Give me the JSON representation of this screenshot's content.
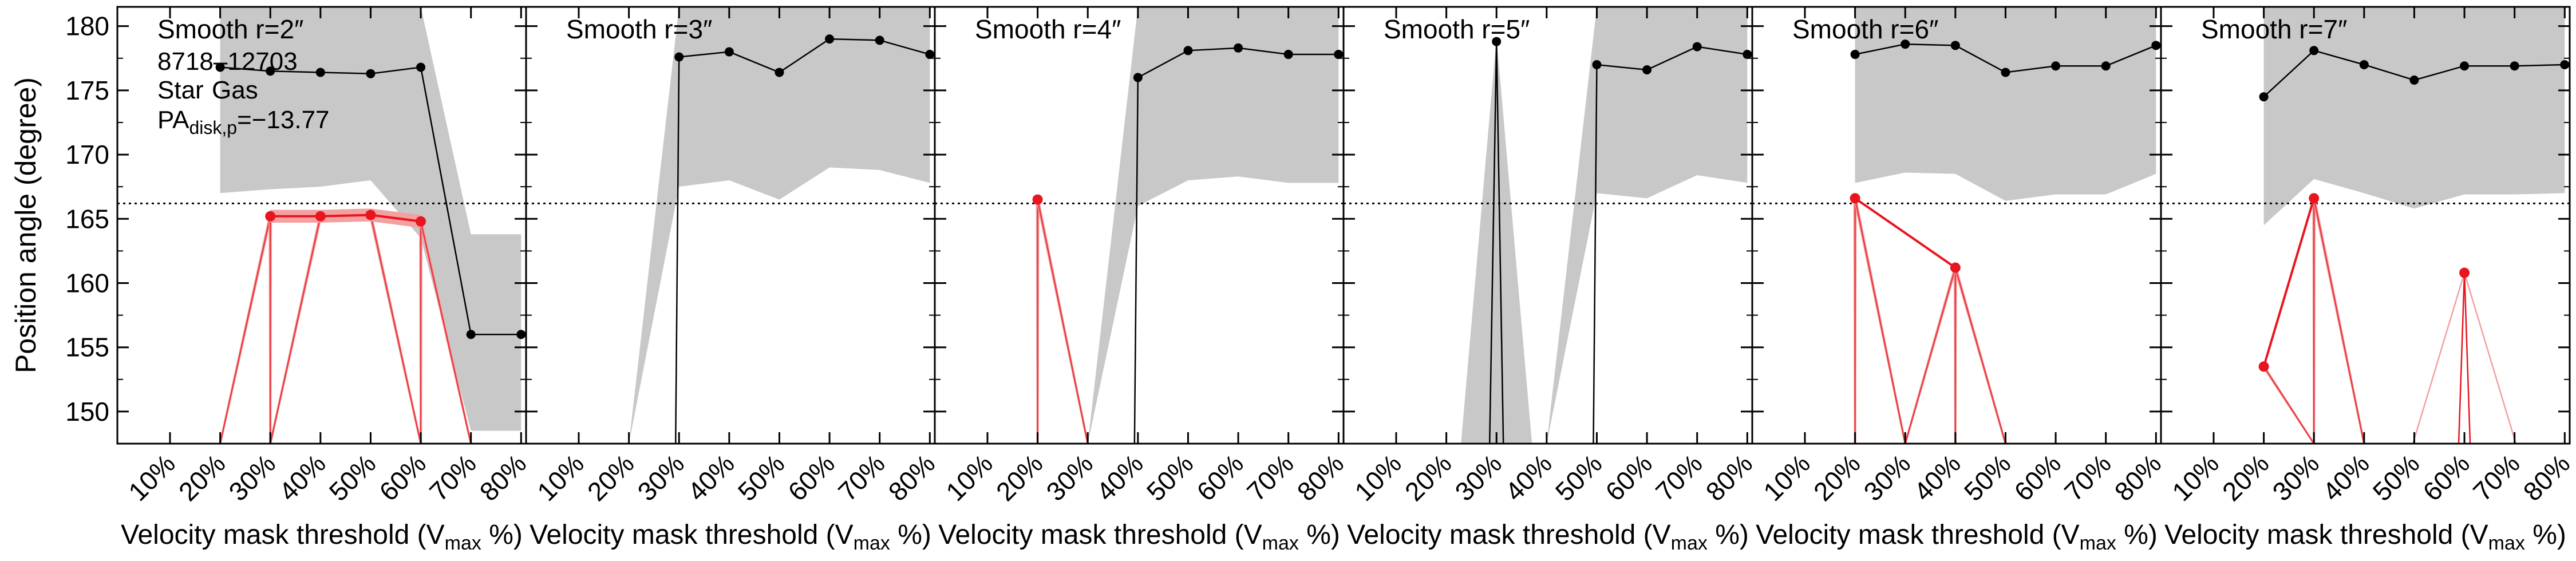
{
  "chart_data": {
    "type": "line",
    "ylabel": "Position angle (degree)",
    "ylim": [
      147.5,
      181.5
    ],
    "yticks": [
      150,
      155,
      160,
      165,
      170,
      175,
      180
    ],
    "x_categories": [
      "10%",
      "20%",
      "30%",
      "40%",
      "50%",
      "60%",
      "70%",
      "80%"
    ],
    "xlabel_main": "Velocity mask threshold (V",
    "xlabel_sub": "max",
    "xlabel_tail": " %)",
    "reference_line": 166.2,
    "colors": {
      "star": "#000000",
      "gas": "#e8141e",
      "band": "#c8c8c8",
      "gas_band": "#f2a0a0"
    },
    "annotation": {
      "id": "8718–12703",
      "star_label": "Star",
      "gas_label": "Gas",
      "pa_prefix": "PA",
      "pa_sub": "disk,p",
      "pa_value": "=−13.77"
    },
    "panels": [
      {
        "title": "Smooth r=2″",
        "star": {
          "x": [
            "20%",
            "30%",
            "40%",
            "50%",
            "60%",
            "70%",
            "80%"
          ],
          "y": [
            176.8,
            176.5,
            176.4,
            176.3,
            176.8,
            156.0,
            156.0
          ]
        },
        "star_band": {
          "lo": [
            167.0,
            167.3,
            167.5,
            168.0,
            163.5,
            148.5,
            148.5
          ],
          "hi": [
            181.5,
            181.5,
            181.5,
            181.5,
            181.5,
            163.8,
            163.8
          ]
        },
        "gas": {
          "x": [
            "30%",
            "40%",
            "50%",
            "60%"
          ],
          "y": [
            165.2,
            165.2,
            165.3,
            164.8
          ]
        },
        "gas_err": 0.5,
        "gas_drops": [
          "20%",
          "30%",
          "60%",
          "70%"
        ]
      },
      {
        "title": "Smooth r=3″",
        "star": {
          "x": [
            "30%",
            "40%",
            "50%",
            "60%",
            "70%",
            "80%"
          ],
          "y": [
            177.6,
            178.0,
            176.4,
            179.0,
            178.9,
            177.8
          ]
        },
        "star_band": {
          "lo": [
            167.5,
            168.0,
            166.5,
            169.0,
            168.8,
            167.8
          ],
          "hi": [
            181.5,
            181.5,
            181.5,
            181.5,
            181.5,
            181.5
          ]
        },
        "star_drop_from": "30%",
        "star_band_wedge_from": "20%",
        "gas": {
          "x": [],
          "y": []
        }
      },
      {
        "title": "Smooth r=4″",
        "star": {
          "x": [
            "40%",
            "50%",
            "60%",
            "70%",
            "80%"
          ],
          "y": [
            176.0,
            178.1,
            178.3,
            177.8,
            177.8
          ]
        },
        "star_band": {
          "lo": [
            166.0,
            168.0,
            168.3,
            167.8,
            167.8
          ],
          "hi": [
            181.5,
            181.5,
            181.5,
            181.5,
            181.5
          ]
        },
        "star_drop_from": "40%",
        "star_band_wedge_from": "30%",
        "gas": {
          "x": [
            "20%"
          ],
          "y": [
            166.5
          ]
        },
        "gas_drops": [
          "20%",
          "30%"
        ]
      },
      {
        "title": "Smooth r=5″",
        "star": {
          "x": [
            "50%",
            "60%",
            "70%",
            "80%"
          ],
          "y": [
            177.0,
            176.6,
            178.4,
            177.8
          ]
        },
        "star_band": {
          "lo": [
            167.0,
            166.6,
            168.4,
            167.8
          ],
          "hi": [
            181.5,
            181.5,
            181.5,
            181.5
          ]
        },
        "star_spike": {
          "x": "30%",
          "y": 178.8
        },
        "star_drop_from": "50%",
        "star_band_wedge_from": "40%",
        "gas": {
          "x": [],
          "y": []
        }
      },
      {
        "title": "Smooth r=6″",
        "star": {
          "x": [
            "20%",
            "30%",
            "40%",
            "50%",
            "60%",
            "70%",
            "80%"
          ],
          "y": [
            177.8,
            178.6,
            178.5,
            176.4,
            176.9,
            176.9,
            178.5
          ]
        },
        "star_band": {
          "lo": [
            167.8,
            168.6,
            168.5,
            166.4,
            166.9,
            166.9,
            168.5
          ],
          "hi": [
            181.5,
            181.5,
            181.5,
            181.5,
            181.5,
            181.5,
            181.5
          ]
        },
        "gas": {
          "x": [
            "20%",
            "40%"
          ],
          "y": [
            166.6,
            161.2
          ]
        },
        "gas_drops": [
          "20%",
          "30%",
          "40%",
          "50%"
        ]
      },
      {
        "title": "Smooth r=7″",
        "star": {
          "x": [
            "20%",
            "30%",
            "40%",
            "50%",
            "60%",
            "70%",
            "80%"
          ],
          "y": [
            174.5,
            178.1,
            177.0,
            175.8,
            176.9,
            176.9,
            177.0
          ]
        },
        "star_band": {
          "lo": [
            164.5,
            168.1,
            167.0,
            165.8,
            166.9,
            166.9,
            167.0
          ],
          "hi": [
            181.5,
            181.5,
            181.5,
            181.5,
            181.5,
            181.5,
            181.5
          ]
        },
        "gas": {
          "x": [
            "20%",
            "30%"
          ],
          "y": [
            153.5,
            166.6
          ]
        },
        "gas_spike": {
          "x": "60%",
          "y": 160.8
        },
        "gas_drops": [
          "30%",
          "40%",
          "60%",
          "70%"
        ]
      }
    ]
  }
}
